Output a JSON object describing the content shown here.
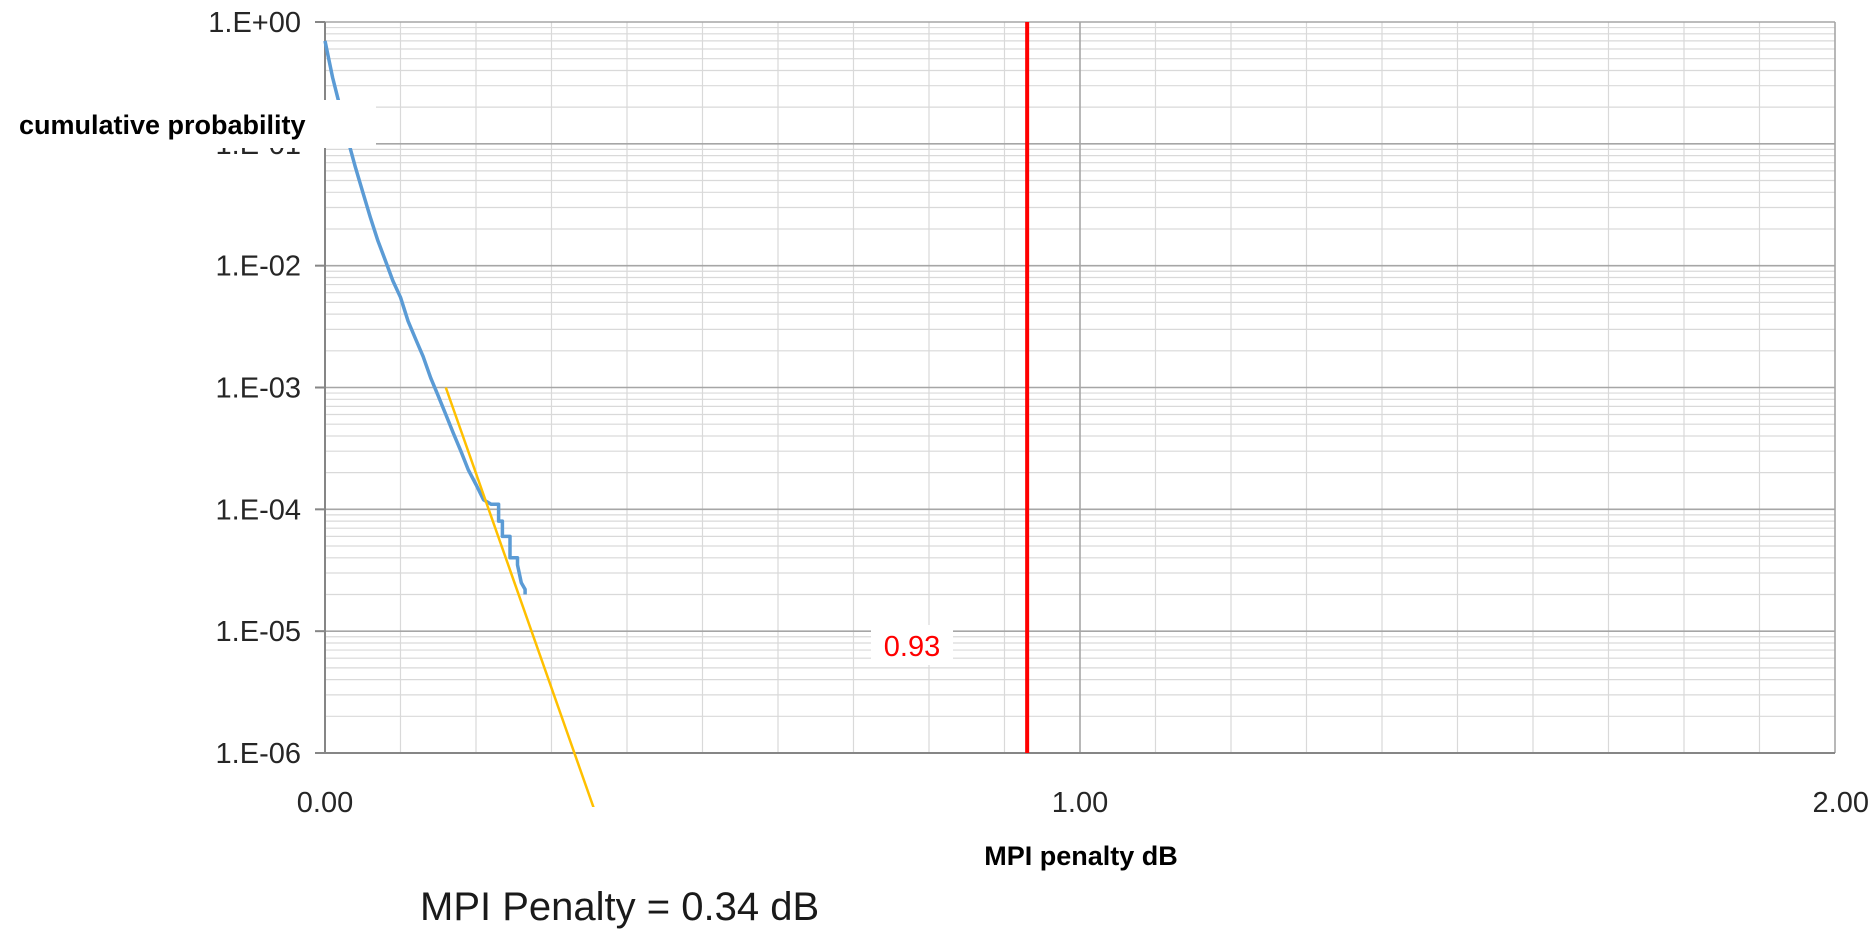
{
  "chart_data": {
    "type": "line",
    "xlabel": "MPI penalty dB",
    "ylabel": "cumulative probability",
    "x_ticks": [
      "0.00",
      "1.00",
      "2.00"
    ],
    "y_ticks": [
      "1.E+00",
      "1.E-01",
      "1.E-02",
      "1.E-03",
      "1.E-04",
      "1.E-05",
      "1.E-06"
    ],
    "xlim": [
      0,
      2
    ],
    "ylim": [
      1e-06,
      1
    ],
    "y_scale": "log",
    "grid": true,
    "series": [
      {
        "color": "#5b9bd5",
        "x": [
          0.0,
          0.01,
          0.02,
          0.03,
          0.04,
          0.05,
          0.06,
          0.07,
          0.08,
          0.09,
          0.1,
          0.11,
          0.12,
          0.13,
          0.14,
          0.15,
          0.16,
          0.17,
          0.18,
          0.19,
          0.2,
          0.21,
          0.22,
          0.23,
          0.23,
          0.235,
          0.235,
          0.245,
          0.245,
          0.255,
          0.255,
          0.26,
          0.265,
          0.265
        ],
        "y": [
          0.7,
          0.35,
          0.2,
          0.11,
          0.065,
          0.04,
          0.025,
          0.016,
          0.011,
          0.0075,
          0.0055,
          0.0035,
          0.0025,
          0.0018,
          0.0012,
          0.00085,
          0.0006,
          0.00042,
          0.0003,
          0.00021,
          0.00016,
          0.00012,
          0.00011,
          0.00011,
          8e-05,
          8e-05,
          6e-05,
          6e-05,
          4e-05,
          4e-05,
          3.5e-05,
          2.5e-05,
          2.2e-05,
          2e-05
        ]
      },
      {
        "color": "#ffc000",
        "x": [
          0.16,
          0.36
        ],
        "y": [
          0.001,
          3e-07
        ]
      }
    ],
    "reference_line": {
      "x": 0.93,
      "color": "#ff0000",
      "label": "0.93"
    },
    "footer": "MPI Penalty = 0.34 dB"
  }
}
